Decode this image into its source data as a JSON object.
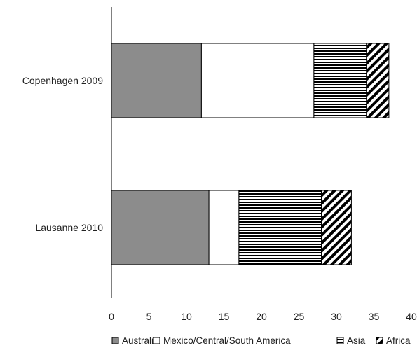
{
  "chart_data": {
    "type": "bar",
    "orientation": "horizontal",
    "stacked": true,
    "title": "",
    "xlabel": "",
    "ylabel": "",
    "xlim": [
      0,
      40
    ],
    "x_ticks": [
      0,
      5,
      10,
      15,
      20,
      25,
      30,
      35,
      40
    ],
    "grid": false,
    "legend_position": "bottom",
    "categories": [
      "Copenhagen 2009",
      "Lausanne 2010"
    ],
    "series": [
      {
        "name": "Australia",
        "values": [
          12,
          13
        ],
        "pattern": "solid-gray",
        "color": "#8c8c8c"
      },
      {
        "name": "Mexico/Central/South America",
        "values": [
          15,
          4
        ],
        "pattern": "white",
        "color": "#ffffff"
      },
      {
        "name": "Asia",
        "values": [
          7,
          11
        ],
        "pattern": "horizontal-lines",
        "color": "#000000"
      },
      {
        "name": "Africa",
        "values": [
          3,
          4
        ],
        "pattern": "diagonal-stripes",
        "color": "#000000"
      }
    ]
  }
}
